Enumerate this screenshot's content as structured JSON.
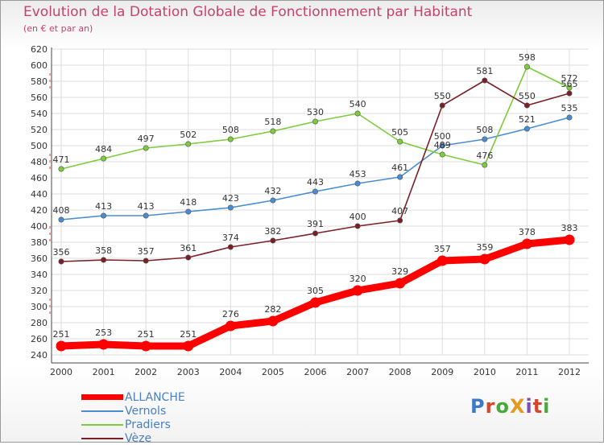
{
  "title": "Evolution de la Dotation Globale de Fonctionnement par Habitant",
  "subtitle": "(en € et par an)",
  "logo": {
    "text": "ProXiti",
    "colors": [
      "#3f78c8",
      "#d9452b",
      "#4aa83b",
      "#e39a1f",
      "#7b4fb8",
      "#d9452b",
      "#4aa83b"
    ]
  },
  "chart_data": {
    "type": "line",
    "x": [
      2000,
      2001,
      2002,
      2003,
      2004,
      2005,
      2006,
      2007,
      2008,
      2009,
      2010,
      2011,
      2012
    ],
    "ylim": [
      240,
      620
    ],
    "yticks": [
      240,
      260,
      280,
      300,
      320,
      340,
      360,
      380,
      400,
      420,
      440,
      460,
      480,
      500,
      520,
      540,
      560,
      580,
      600,
      620
    ],
    "grid": true,
    "legend_position": "bottom-left",
    "series": [
      {
        "name": "ALLANCHE",
        "color": "#ff0000",
        "values": [
          251,
          253,
          251,
          251,
          276,
          282,
          305,
          320,
          329,
          357,
          359,
          378,
          383
        ]
      },
      {
        "name": "Vernols",
        "color": "#4a8dcf",
        "values": [
          408,
          413,
          413,
          418,
          423,
          432,
          443,
          453,
          461,
          500,
          508,
          521,
          535
        ]
      },
      {
        "name": "Pradiers",
        "color": "#7ccc3c",
        "values": [
          471,
          484,
          497,
          502,
          508,
          518,
          530,
          540,
          505,
          489,
          476,
          598,
          572
        ]
      },
      {
        "name": "Vèze",
        "color": "#7a1f26",
        "values": [
          356,
          358,
          357,
          361,
          374,
          382,
          391,
          400,
          407,
          550,
          581,
          550,
          565
        ]
      }
    ]
  }
}
